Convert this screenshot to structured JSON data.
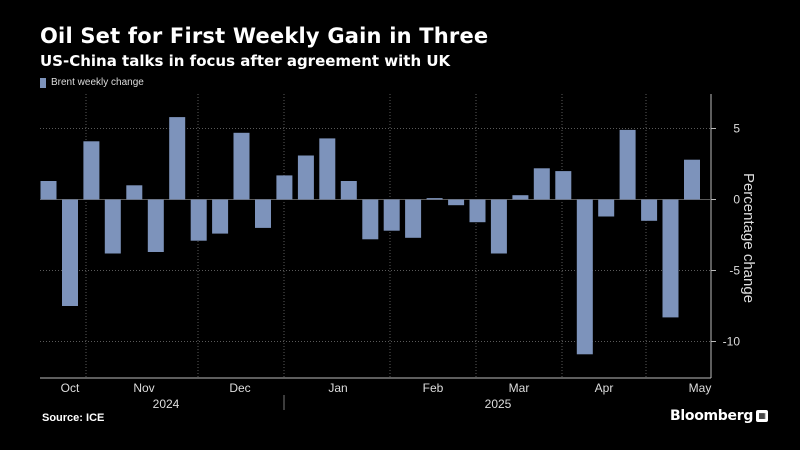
{
  "header": {
    "title": "Oil Set for First Weekly Gain in Three",
    "subtitle": "US-China talks in focus after agreement with UK"
  },
  "footer": {
    "source": "Source: ICE",
    "brand": "Bloomberg"
  },
  "colors": {
    "bar": "#7d93bb",
    "background": "#000000",
    "grid": "#5a5a5a",
    "text": "#ffffff"
  },
  "chart_data": {
    "type": "bar",
    "legend": [
      "Brent weekly change"
    ],
    "legend_position": "top-left",
    "ylabel": "Percentage change",
    "yticks": [
      5,
      0,
      -5,
      -10
    ],
    "ylim": [
      -12.5,
      7.5
    ],
    "grid": true,
    "month_labels": [
      "Oct",
      "Nov",
      "Dec",
      "Jan",
      "Feb",
      "Mar",
      "Apr",
      "May"
    ],
    "year_labels": [
      "2024",
      "2025"
    ],
    "series": [
      {
        "values": [
          1.3,
          -7.5,
          4.1,
          -3.8,
          1.0,
          -3.7,
          5.8,
          -2.9,
          -2.4,
          4.7,
          -2.0,
          1.7,
          3.1,
          4.3,
          1.3,
          -2.8,
          -2.2,
          -2.7,
          0.1,
          -0.4,
          -1.6,
          -3.8,
          0.3,
          2.2,
          2.0,
          -10.9,
          -1.2,
          4.9,
          -1.5,
          -8.3,
          2.8
        ]
      }
    ]
  }
}
